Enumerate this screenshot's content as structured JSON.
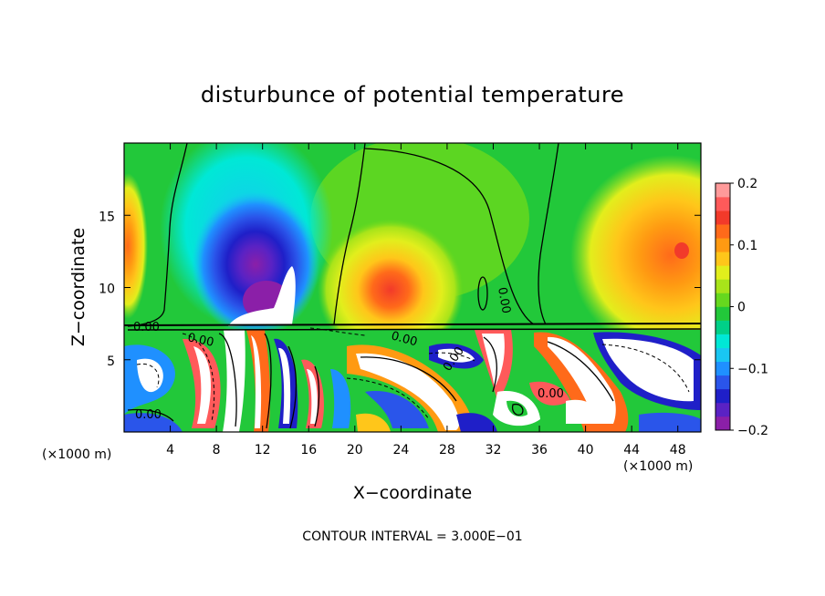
{
  "chart_data": {
    "type": "heatmap",
    "title": "disturbunce of potential temperature",
    "xlabel": "X−coordinate",
    "ylabel": "Z−coordinate",
    "x_unit": "(×1000 m)",
    "z_unit": "(×1000 m)",
    "xlim": [
      0,
      50
    ],
    "ylim": [
      0,
      20
    ],
    "xticks": [
      4,
      8,
      12,
      16,
      20,
      24,
      28,
      32,
      36,
      40,
      44,
      48
    ],
    "xtick_labels": [
      "4",
      "8",
      "12",
      "16",
      "20",
      "24",
      "28",
      "32",
      "36",
      "40",
      "44",
      "48"
    ],
    "yticks": [
      5,
      10,
      15
    ],
    "ytick_labels": [
      "5",
      "10",
      "15"
    ],
    "colorbar": {
      "range": [
        -0.2,
        0.2
      ],
      "ticks": [
        -0.2,
        -0.1,
        0,
        0.1,
        0.2
      ],
      "tick_labels": [
        "−0.2",
        "−0.1",
        "0",
        "0.1",
        "0.2"
      ],
      "colors": [
        "#8b1fa8",
        "#5a22c4",
        "#1f1fc8",
        "#2a55ea",
        "#1f90ff",
        "#19c6f2",
        "#00e8d6",
        "#00d088",
        "#22c83a",
        "#66d81e",
        "#a8e41a",
        "#e2ee1c",
        "#ffc61a",
        "#ff9a12",
        "#ff6a1a",
        "#f23a2a",
        "#ff5a5a",
        "#ff9a9a"
      ]
    },
    "contour_labels": [
      "0.00",
      "0.00",
      "0.00",
      "0.00",
      "0.00",
      "0.00",
      "0.00"
    ],
    "footer": "CONTOUR INTERVAL = 3.000E−01",
    "regions": [
      {
        "name": "cold-anomaly-left",
        "x_center": 11,
        "z_center": 13,
        "value": -0.19
      },
      {
        "name": "warm-anomaly-center",
        "x_center": 23.5,
        "z_center": 9.5,
        "value": 0.15
      },
      {
        "name": "warm-anomaly-right",
        "x_center": 47,
        "z_center": 12.5,
        "value": 0.14
      },
      {
        "name": "warm-band-left-edge",
        "x_center": 1,
        "z_center": 13,
        "value": 0.08
      },
      {
        "name": "turbulent-layer",
        "x_center": 25,
        "z_center": 3.5,
        "value": 0.0
      }
    ]
  }
}
